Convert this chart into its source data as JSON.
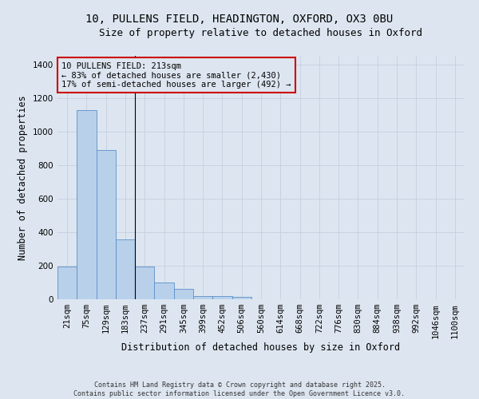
{
  "title_line1": "10, PULLENS FIELD, HEADINGTON, OXFORD, OX3 0BU",
  "title_line2": "Size of property relative to detached houses in Oxford",
  "xlabel": "Distribution of detached houses by size in Oxford",
  "ylabel": "Number of detached properties",
  "bar_color": "#b8d0ea",
  "bar_edge_color": "#5b8fc9",
  "background_color": "#dde6f0",
  "annotation_text": "10 PULLENS FIELD: 213sqm\n← 83% of detached houses are smaller (2,430)\n17% of semi-detached houses are larger (492) →",
  "annotation_box_color": "#cc0000",
  "xlim_min": -0.5,
  "xlim_max": 20.5,
  "ylim_min": 0,
  "ylim_max": 1450,
  "categories": [
    "21sqm",
    "75sqm",
    "129sqm",
    "183sqm",
    "237sqm",
    "291sqm",
    "345sqm",
    "399sqm",
    "452sqm",
    "506sqm",
    "560sqm",
    "614sqm",
    "668sqm",
    "722sqm",
    "776sqm",
    "830sqm",
    "884sqm",
    "938sqm",
    "992sqm",
    "1046sqm",
    "1100sqm"
  ],
  "values": [
    193,
    1125,
    890,
    355,
    195,
    100,
    60,
    20,
    18,
    12,
    0,
    0,
    0,
    0,
    0,
    0,
    0,
    0,
    0,
    0,
    0
  ],
  "footer": "Contains HM Land Registry data © Crown copyright and database right 2025.\nContains public sector information licensed under the Open Government Licence v3.0.",
  "grid_color": "#c5cfe0",
  "title_fontsize": 10,
  "subtitle_fontsize": 9,
  "axis_label_fontsize": 8.5,
  "tick_fontsize": 7.5,
  "prop_line_x_index": 3.5,
  "yticks": [
    0,
    200,
    400,
    600,
    800,
    1000,
    1200,
    1400
  ]
}
